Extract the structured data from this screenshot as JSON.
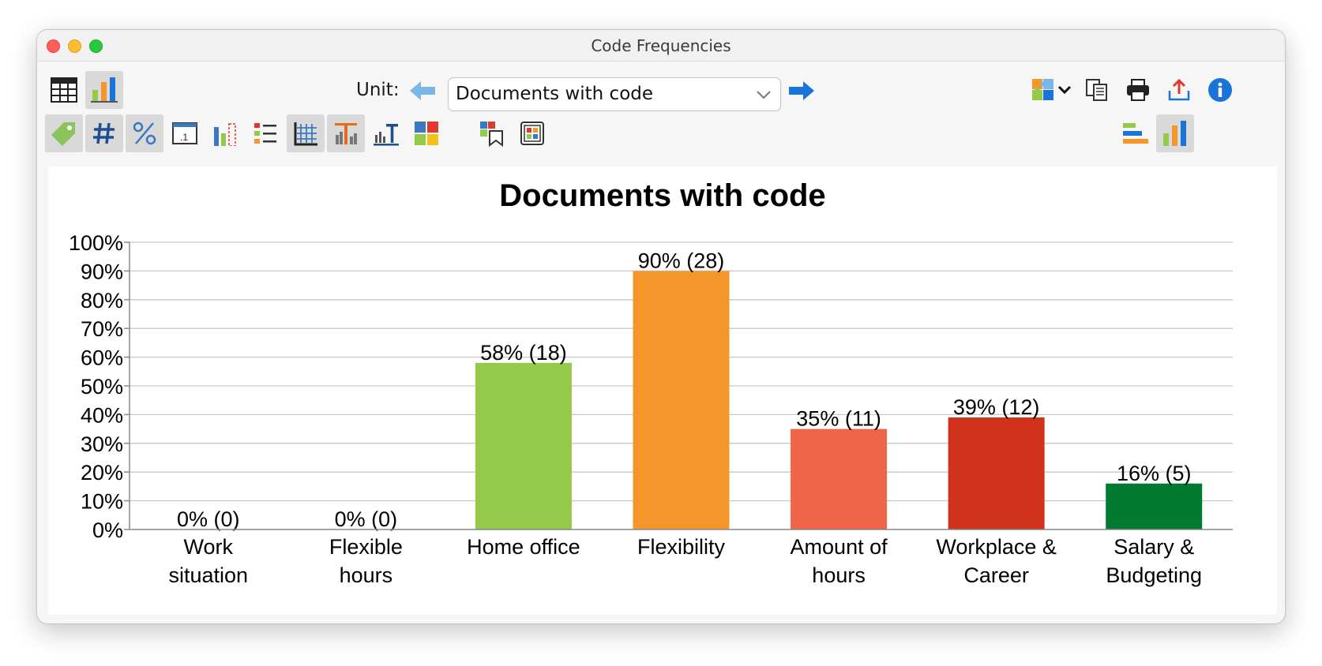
{
  "window": {
    "title": "Code Frequencies"
  },
  "toolbar": {
    "unit_label": "Unit:",
    "unit_value": "Documents with code"
  },
  "icons": {
    "table_view": "table-icon",
    "chart_view": "bar-chart-icon",
    "prev": "arrow-left-icon",
    "next": "arrow-right-icon",
    "codes": "puzzle-icon",
    "copy": "copy-icon",
    "print": "printer-icon",
    "export": "export-icon",
    "info": "info-icon"
  },
  "colors": {
    "accent_blue": "#1a73d9",
    "arrow_left": "#7ab6e8"
  },
  "chart_data": {
    "type": "bar",
    "title": "Documents with code",
    "categories": [
      [
        "Work",
        "situation"
      ],
      [
        "Flexible",
        "hours"
      ],
      [
        "Home office"
      ],
      [
        "Flexibility"
      ],
      [
        "Amount of",
        "hours"
      ],
      [
        "Workplace &",
        "Career"
      ],
      [
        "Salary &",
        "Budgeting"
      ]
    ],
    "values": [
      0,
      0,
      58,
      90,
      35,
      39,
      16
    ],
    "counts": [
      0,
      0,
      18,
      28,
      11,
      12,
      5
    ],
    "data_labels": [
      "0% (0)",
      "0% (0)",
      "58% (18)",
      "90% (28)",
      "35% (11)",
      "39% (12)",
      "16% (5)"
    ],
    "colors": [
      "#95c94a",
      "#95c94a",
      "#95c94a",
      "#f4962a",
      "#f0654a",
      "#d0321c",
      "#027a30"
    ],
    "ylim": [
      0,
      100
    ],
    "yticks": [
      "0%",
      "10%",
      "20%",
      "30%",
      "40%",
      "50%",
      "60%",
      "70%",
      "80%",
      "90%",
      "100%"
    ],
    "grid": true,
    "legend": "none"
  }
}
